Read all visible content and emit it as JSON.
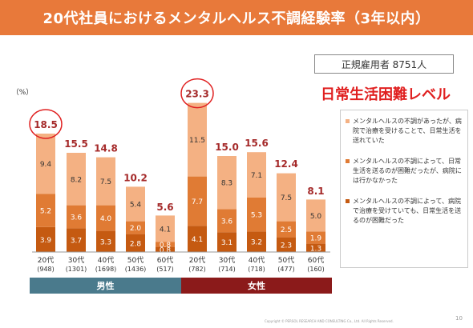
{
  "title": "20代社員におけるメンタルヘルス不調経験率（3年以内）",
  "employees_label": "正規雇用者  8751人",
  "hardship_heading": "日常生活困難レベル",
  "page_number": "10",
  "copyright": "Copyright © PERSOL RESEARCH AND CONSULTING Co., Ltd. All Rights Reserved.",
  "colors": {
    "title_bg": "#e8793a",
    "level1": "#f4b183",
    "level2": "#e07b34",
    "level3": "#c55a11",
    "male_band": "#4a7a8c",
    "female_band": "#8b1a1a",
    "total_label": "#a52a2a",
    "highlight_circle": "#e02020"
  },
  "chart_data": {
    "type": "bar",
    "stacked": true,
    "ylabel": "（%）",
    "categories": [
      "20代",
      "30代",
      "40代",
      "50代",
      "60代",
      "20代",
      "30代",
      "40代",
      "50代",
      "60代"
    ],
    "sample_sizes": [
      "(948)",
      "(1301)",
      "(1698)",
      "(1436)",
      "(517)",
      "(782)",
      "(714)",
      "(718)",
      "(477)",
      "(160)"
    ],
    "groups": [
      {
        "name": "男性",
        "categories": [
          0,
          1,
          2,
          3,
          4
        ]
      },
      {
        "name": "女性",
        "categories": [
          5,
          6,
          7,
          8,
          9
        ]
      }
    ],
    "totals": [
      18.5,
      15.5,
      14.8,
      10.2,
      5.6,
      23.3,
      15.0,
      15.6,
      12.4,
      8.1
    ],
    "highlighted": [
      0,
      5
    ],
    "series": [
      {
        "name": "メンタルヘルスの不調によって、病院で治療を受けていても、日常生活を送るのが困難だった",
        "values": [
          3.9,
          3.7,
          3.3,
          2.8,
          0.8,
          4.1,
          3.1,
          3.2,
          2.3,
          1.3
        ]
      },
      {
        "name": "メンタルヘルスの不調によって、日常生活を送るのが困難だったが、病院には行かなかった",
        "values": [
          5.2,
          3.6,
          4.0,
          2.0,
          0.8,
          7.7,
          3.6,
          5.3,
          2.5,
          1.9
        ]
      },
      {
        "name": "メンタルヘルスの不調があったが、病院で治療を受けることで、日常生活を送れていた",
        "values": [
          9.4,
          8.2,
          7.5,
          5.4,
          4.1,
          11.5,
          8.3,
          7.1,
          7.5,
          5.0
        ]
      }
    ]
  }
}
